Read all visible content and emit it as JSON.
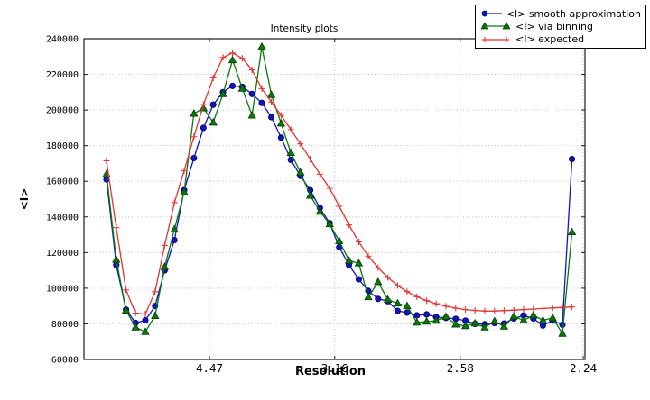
{
  "figure": {
    "title": "Intensity plots",
    "xlabel": "Resolution",
    "ylabel": "<I>",
    "background": "#ffffff"
  },
  "chart_data": {
    "type": "line",
    "title": "Intensity plots",
    "xlabel": "Resolution",
    "ylabel": "<I>",
    "grid": true,
    "grid_style": "dotted",
    "legend_position": "top-right, outside plot box",
    "x_axis": {
      "note": "resolution axis, linear in 1/d^2; tick labels are d in Angstrom",
      "range": [
        0,
        0.2
      ],
      "ticks": [
        {
          "label": "4.47",
          "inv_d2": 0.0501
        },
        {
          "label": "3.16",
          "inv_d2": 0.1001
        },
        {
          "label": "2.58",
          "inv_d2": 0.1502
        },
        {
          "label": "2.24",
          "inv_d2": 0.1993
        }
      ]
    },
    "y_axis": {
      "range": [
        60000,
        240000
      ],
      "ticks": [
        60000,
        80000,
        100000,
        120000,
        140000,
        160000,
        180000,
        200000,
        220000,
        240000
      ]
    },
    "x": [
      0.009,
      0.0129,
      0.0168,
      0.0206,
      0.0245,
      0.0284,
      0.0322,
      0.0361,
      0.04,
      0.0439,
      0.0477,
      0.0516,
      0.0555,
      0.0593,
      0.0632,
      0.0671,
      0.071,
      0.0748,
      0.0787,
      0.0826,
      0.0864,
      0.0903,
      0.0942,
      0.0981,
      0.1019,
      0.1058,
      0.1097,
      0.1135,
      0.1174,
      0.1213,
      0.1252,
      0.129,
      0.1329,
      0.1368,
      0.1406,
      0.1445,
      0.1484,
      0.1523,
      0.1561,
      0.16,
      0.1639,
      0.1677,
      0.1716,
      0.1755,
      0.1794,
      0.1832,
      0.1871,
      0.191,
      0.1948
    ],
    "series": [
      {
        "name": "<I> smooth approximation",
        "marker": "circle",
        "color": "#1414bf",
        "edge_color": "#00006e",
        "values": [
          161000,
          113000,
          88000,
          80500,
          82000,
          90000,
          110000,
          127000,
          155000,
          173000,
          190000,
          203000,
          210000,
          213500,
          213000,
          209000,
          204000,
          196000,
          184500,
          172000,
          163000,
          155000,
          145000,
          136500,
          123000,
          113000,
          105000,
          98500,
          94000,
          92700,
          87300,
          86300,
          84800,
          85300,
          83800,
          83300,
          82800,
          81800,
          80000,
          79800,
          80500,
          80200,
          83000,
          84700,
          83000,
          79000,
          81800,
          79500,
          172500
        ]
      },
      {
        "name": "<I> via binning",
        "marker": "triangle",
        "color": "#0a780a",
        "edge_color": "#033d03",
        "values": [
          164000,
          116000,
          87500,
          78000,
          75500,
          84500,
          112000,
          133000,
          154000,
          198000,
          201000,
          193000,
          209000,
          228000,
          212000,
          197000,
          235500,
          208500,
          192500,
          176000,
          165000,
          152000,
          143000,
          136000,
          126500,
          115500,
          114000,
          95000,
          103500,
          93600,
          91500,
          90000,
          80800,
          81300,
          81800,
          84000,
          79700,
          78800,
          80300,
          78000,
          81500,
          78500,
          84200,
          82000,
          84800,
          82000,
          83300,
          74500,
          131500
        ]
      },
      {
        "name": "<I> expected",
        "marker": "plus",
        "color": "#e03434",
        "edge_color": "#e03434",
        "values": [
          171500,
          134000,
          99000,
          86000,
          85500,
          98000,
          124000,
          148000,
          166000,
          185000,
          203000,
          218000,
          229500,
          232000,
          229000,
          222500,
          212000,
          204500,
          197000,
          189000,
          181000,
          172500,
          164000,
          156000,
          146000,
          135500,
          126000,
          118000,
          111500,
          106000,
          101500,
          98000,
          95200,
          93000,
          91300,
          89900,
          88800,
          88000,
          87500,
          87200,
          87200,
          87400,
          87700,
          88000,
          88300,
          88600,
          88900,
          89200,
          89500
        ]
      }
    ]
  },
  "style": {
    "grid_color": "#b3b3b3",
    "spine_color": "#1a1a1a",
    "tick_label_color": "#000000"
  }
}
